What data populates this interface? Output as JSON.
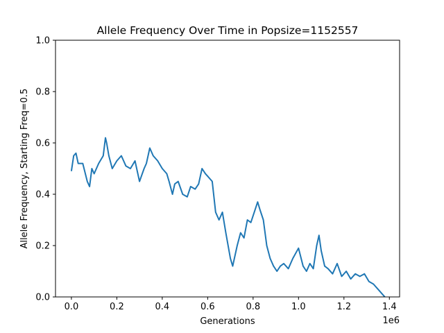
{
  "chart_data": {
    "type": "line",
    "title": "Allele Frequency Over Time in Popsize=1152557",
    "xlabel": "Generations",
    "ylabel": "Allele Frequency, Starting Freq=0.5",
    "x_offset_label": "1e6",
    "xlim": [
      -70000,
      1445000
    ],
    "ylim": [
      0.0,
      1.0
    ],
    "x_ticks": [
      0.0,
      0.2,
      0.4,
      0.6,
      0.8,
      1.0,
      1.2,
      1.4
    ],
    "x_tick_labels": [
      "0.0",
      "0.2",
      "0.4",
      "0.6",
      "0.8",
      "1.0",
      "1.2",
      "1.4"
    ],
    "y_ticks": [
      0.0,
      0.2,
      0.4,
      0.6,
      0.8,
      1.0
    ],
    "y_tick_labels": [
      "0.0",
      "0.2",
      "0.4",
      "0.6",
      "0.8",
      "1.0"
    ],
    "grid": false,
    "series_color": "#1f77b4",
    "series": [
      {
        "x": [
          0,
          10000,
          20000,
          30000,
          50000,
          70000,
          80000,
          90000,
          100000,
          120000,
          140000,
          150000,
          155000,
          165000,
          180000,
          200000,
          220000,
          240000,
          260000,
          280000,
          300000,
          320000,
          330000,
          345000,
          360000,
          380000,
          400000,
          420000,
          430000,
          445000,
          455000,
          470000,
          490000,
          510000,
          525000,
          545000,
          560000,
          575000,
          590000,
          600000,
          620000,
          635000,
          650000,
          665000,
          680000,
          700000,
          710000,
          730000,
          745000,
          760000,
          775000,
          790000,
          805000,
          820000,
          830000,
          845000,
          860000,
          875000,
          890000,
          905000,
          920000,
          935000,
          955000,
          975000,
          1000000,
          1020000,
          1035000,
          1050000,
          1065000,
          1080000,
          1090000,
          1100000,
          1115000,
          1130000,
          1150000,
          1170000,
          1190000,
          1210000,
          1230000,
          1250000,
          1270000,
          1290000,
          1310000,
          1330000,
          1350000,
          1370000,
          1380000
        ],
        "y": [
          0.49,
          0.55,
          0.56,
          0.52,
          0.52,
          0.45,
          0.43,
          0.5,
          0.48,
          0.52,
          0.55,
          0.62,
          0.6,
          0.55,
          0.5,
          0.53,
          0.55,
          0.51,
          0.5,
          0.53,
          0.45,
          0.5,
          0.52,
          0.58,
          0.55,
          0.53,
          0.5,
          0.48,
          0.45,
          0.4,
          0.44,
          0.45,
          0.4,
          0.39,
          0.43,
          0.42,
          0.44,
          0.5,
          0.48,
          0.47,
          0.45,
          0.33,
          0.3,
          0.33,
          0.25,
          0.15,
          0.12,
          0.2,
          0.25,
          0.23,
          0.3,
          0.29,
          0.33,
          0.37,
          0.34,
          0.3,
          0.2,
          0.15,
          0.12,
          0.1,
          0.12,
          0.13,
          0.11,
          0.15,
          0.19,
          0.12,
          0.1,
          0.13,
          0.11,
          0.2,
          0.24,
          0.18,
          0.12,
          0.11,
          0.09,
          0.13,
          0.08,
          0.1,
          0.07,
          0.09,
          0.08,
          0.09,
          0.06,
          0.05,
          0.03,
          0.01,
          0.0
        ]
      }
    ]
  }
}
